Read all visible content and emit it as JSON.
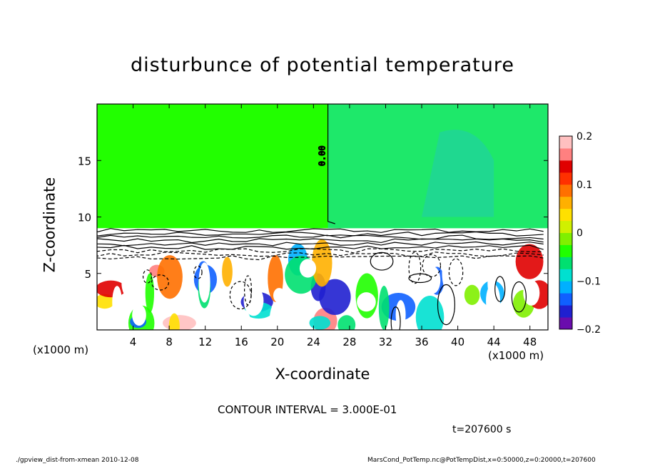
{
  "chart_data": {
    "type": "heatmap",
    "title": "disturbunce of potential temperature",
    "xlabel": "X-coordinate",
    "ylabel": "Z-coordinate",
    "x_unit_label": "(x1000 m)",
    "x_ticks": [
      4,
      8,
      12,
      16,
      20,
      24,
      28,
      32,
      36,
      40,
      44,
      48
    ],
    "y_ticks": [
      5,
      10,
      15
    ],
    "xlim": [
      0,
      50
    ],
    "ylim": [
      0,
      20
    ],
    "colorbar": {
      "range": [
        -0.2,
        0.2
      ],
      "tick_labels": [
        "0.2",
        "0.1",
        "0",
        "−0.1",
        "−0.2"
      ],
      "tick_values": [
        0.2,
        0.1,
        0,
        -0.1,
        -0.2
      ],
      "colors": [
        "#6a0dad",
        "#2020d0",
        "#1060ff",
        "#00b0ff",
        "#00e0d0",
        "#00e070",
        "#20ff00",
        "#80f000",
        "#d0f000",
        "#ffe000",
        "#ffb000",
        "#ff7000",
        "#ff3000",
        "#e00000",
        "#ff8080",
        "#ffc0c0"
      ]
    },
    "contour_label": "0.00",
    "contour_interval_text": "CONTOUR INTERVAL = 3.000E-01",
    "upper_layer_value": 0.0,
    "inversion_height": 9
  },
  "annotations": {
    "time": "t=207600 s",
    "footer_left": "./gpview_dist-from-xmean   2010-12-08",
    "footer_right": "MarsCond_PotTemp.nc@PotTempDist,x=0:50000,z=0:20000,t=207600"
  }
}
